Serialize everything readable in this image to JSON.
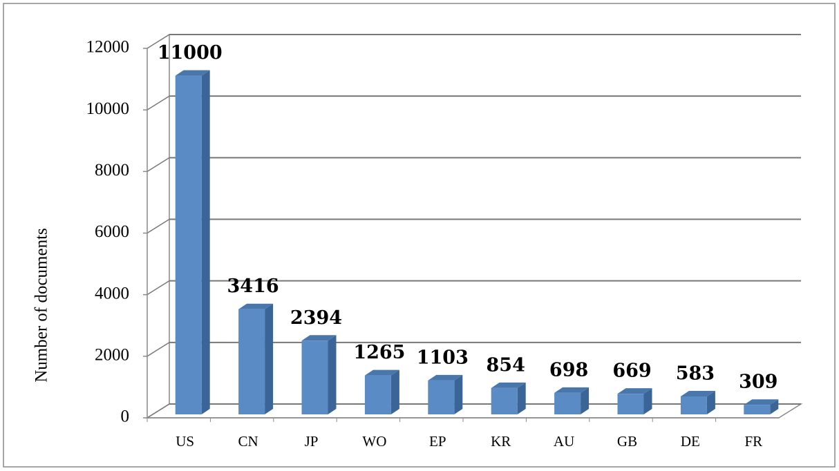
{
  "chart_data": {
    "type": "bar3d",
    "y_label": "Number of documents",
    "categories": [
      "US",
      "CN",
      "JP",
      "WO",
      "EP",
      "KR",
      "AU",
      "GB",
      "DE",
      "FR"
    ],
    "values": [
      11000,
      3416,
      2394,
      1265,
      1103,
      854,
      698,
      669,
      583,
      309
    ],
    "color": "#5a8bc4",
    "ylim": [
      0,
      12000
    ],
    "yticks": [
      0,
      2000,
      4000,
      6000,
      8000,
      10000,
      12000
    ],
    "grid": true
  }
}
